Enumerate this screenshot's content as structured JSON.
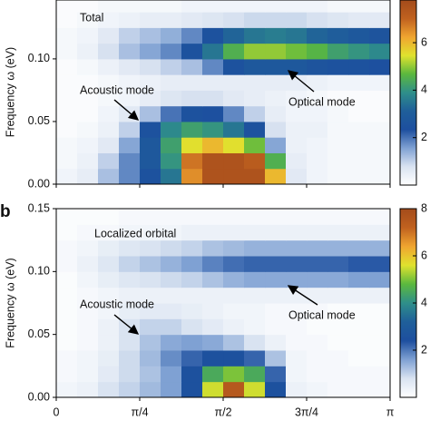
{
  "chart_data": [
    {
      "type": "heatmap",
      "ylabel": "Frequency ω (eV)",
      "annotations": [
        "Total",
        "Acoustic mode",
        "Optical mode"
      ],
      "x": [
        0.0982,
        0.2945,
        0.4909,
        0.6872,
        0.8836,
        1.0799,
        1.2763,
        1.4726,
        1.669,
        1.8653,
        2.0617,
        2.258,
        2.4544,
        2.6507,
        2.8471,
        3.0434
      ],
      "y": [
        0.00625,
        0.01875,
        0.03125,
        0.04375,
        0.05625,
        0.06875,
        0.08125,
        0.09375,
        0.10625,
        0.11875,
        0.13125,
        0.14375
      ],
      "z": [
        [
          0.3,
          0.5,
          1.2,
          1.8,
          2.5,
          3.5,
          6.5,
          7.5,
          7.5,
          7.5,
          6.0,
          0.6,
          0.3,
          0.2,
          0.2,
          0.2
        ],
        [
          0.2,
          0.4,
          1.0,
          1.8,
          2.8,
          4.0,
          6.8,
          7.5,
          7.5,
          7.2,
          4.5,
          0.5,
          0.3,
          0.2,
          0.2,
          0.2
        ],
        [
          0.2,
          0.3,
          0.6,
          1.5,
          2.8,
          4.2,
          5.5,
          6.0,
          5.5,
          4.8,
          1.5,
          0.4,
          0.3,
          0.2,
          0.2,
          0.2
        ],
        [
          0.1,
          0.2,
          0.4,
          1.0,
          2.5,
          3.8,
          4.2,
          4.0,
          3.5,
          2.5,
          0.8,
          0.4,
          0.4,
          0.2,
          0.2,
          0.2
        ],
        [
          0.1,
          0.1,
          0.3,
          0.6,
          1.2,
          2.0,
          2.5,
          2.4,
          1.8,
          1.0,
          0.5,
          0.3,
          0.3,
          0.2,
          0.1,
          0.1
        ],
        [
          0.1,
          0.1,
          0.2,
          0.3,
          0.5,
          0.7,
          0.8,
          0.8,
          0.6,
          0.5,
          0.4,
          0.3,
          0.2,
          0.1,
          0.1,
          0.1
        ],
        [
          0.1,
          0.1,
          0.2,
          0.3,
          0.4,
          0.5,
          0.5,
          0.5,
          0.5,
          0.5,
          0.5,
          0.5,
          0.4,
          0.3,
          0.3,
          0.3
        ],
        [
          0.1,
          0.2,
          0.4,
          0.6,
          0.8,
          1.0,
          1.2,
          1.8,
          2.5,
          2.8,
          2.8,
          2.8,
          2.6,
          2.5,
          2.5,
          2.4
        ],
        [
          0.2,
          0.4,
          0.8,
          1.2,
          1.5,
          1.8,
          2.5,
          3.5,
          4.5,
          5.0,
          5.0,
          4.8,
          4.6,
          4.2,
          4.0,
          3.8
        ],
        [
          0.2,
          0.3,
          0.6,
          1.0,
          1.2,
          1.4,
          1.8,
          2.5,
          3.2,
          3.5,
          3.6,
          3.5,
          3.2,
          3.0,
          2.8,
          2.6
        ],
        [
          0.1,
          0.2,
          0.3,
          0.4,
          0.5,
          0.5,
          0.6,
          0.7,
          0.8,
          0.9,
          0.9,
          0.9,
          0.8,
          0.7,
          0.6,
          0.6
        ],
        [
          0.1,
          0.1,
          0.2,
          0.2,
          0.2,
          0.2,
          0.3,
          0.3,
          0.3,
          0.3,
          0.3,
          0.3,
          0.3,
          0.2,
          0.2,
          0.2
        ]
      ],
      "xlim": [
        0,
        3.14159
      ],
      "ylim": [
        0,
        0.147
      ],
      "xticks": [
        0,
        0.7854,
        1.5708,
        2.3562,
        3.14159
      ],
      "yticks": [
        {
          "value": 0,
          "label": "0.00"
        },
        {
          "value": 0.05,
          "label": "0.05"
        },
        {
          "value": 0.1,
          "label": "0.10"
        }
      ],
      "zlim": [
        0,
        7.8
      ],
      "zticks": [
        2,
        4,
        6
      ],
      "colormap": [
        "#ffffff",
        "#d9e3f1",
        "#7fa1d3",
        "#1d4f9f",
        "#1f5f9a",
        "#2f8f8a",
        "#5bb83e",
        "#e0e22e",
        "#f0a530",
        "#c0611f",
        "#a34b1b"
      ]
    },
    {
      "type": "heatmap",
      "panel_label": "b",
      "ylabel": "Frequency ω (eV)",
      "annotations": [
        "Localized orbital",
        "Acoustic mode",
        "Optical mode"
      ],
      "x": [
        0.0982,
        0.2945,
        0.4909,
        0.6872,
        0.8836,
        1.0799,
        1.2763,
        1.4726,
        1.669,
        1.8653,
        2.0617,
        2.258,
        2.4544,
        2.6507,
        2.8471,
        3.0434
      ],
      "y": [
        0.00625,
        0.01875,
        0.03125,
        0.04375,
        0.05625,
        0.06875,
        0.08125,
        0.09375,
        0.10625,
        0.11875,
        0.13125,
        0.14375
      ],
      "z": [
        [
          0.3,
          0.4,
          0.8,
          1.0,
          1.3,
          1.6,
          2.5,
          5.5,
          7.5,
          5.5,
          2.5,
          0.4,
          0.3,
          0.2,
          0.2,
          0.2
        ],
        [
          0.2,
          0.3,
          0.6,
          0.9,
          1.2,
          1.6,
          2.5,
          4.5,
          5.0,
          4.5,
          2.2,
          0.3,
          0.2,
          0.2,
          0.2,
          0.2
        ],
        [
          0.2,
          0.3,
          0.5,
          0.9,
          1.3,
          1.8,
          2.2,
          2.5,
          2.5,
          2.2,
          1.2,
          0.3,
          0.2,
          0.2,
          0.1,
          0.1
        ],
        [
          0.1,
          0.2,
          0.4,
          0.8,
          1.2,
          1.5,
          1.6,
          1.5,
          1.2,
          0.8,
          0.4,
          0.2,
          0.2,
          0.1,
          0.1,
          0.1
        ],
        [
          0.1,
          0.2,
          0.4,
          0.8,
          1.0,
          1.0,
          0.8,
          0.6,
          0.4,
          0.3,
          0.2,
          0.2,
          0.1,
          0.1,
          0.1,
          0.1
        ],
        [
          0.1,
          0.2,
          0.3,
          0.5,
          0.6,
          0.6,
          0.5,
          0.4,
          0.3,
          0.3,
          0.2,
          0.2,
          0.2,
          0.1,
          0.1,
          0.1
        ],
        [
          0.1,
          0.2,
          0.3,
          0.4,
          0.4,
          0.4,
          0.4,
          0.4,
          0.4,
          0.4,
          0.4,
          0.4,
          0.4,
          0.4,
          0.4,
          0.4
        ],
        [
          0.1,
          0.3,
          0.5,
          0.7,
          0.8,
          0.9,
          1.0,
          1.2,
          1.4,
          1.5,
          1.5,
          1.5,
          1.5,
          1.5,
          1.6,
          1.6
        ],
        [
          0.2,
          0.4,
          0.7,
          1.0,
          1.2,
          1.4,
          1.6,
          1.9,
          2.1,
          2.2,
          2.2,
          2.2,
          2.2,
          2.2,
          2.3,
          2.3
        ],
        [
          0.2,
          0.3,
          0.5,
          0.7,
          0.8,
          0.9,
          1.0,
          1.2,
          1.3,
          1.4,
          1.4,
          1.4,
          1.4,
          1.4,
          1.4,
          1.4
        ],
        [
          0.1,
          0.2,
          0.2,
          0.3,
          0.3,
          0.3,
          0.4,
          0.4,
          0.4,
          0.4,
          0.4,
          0.4,
          0.4,
          0.4,
          0.4,
          0.4
        ],
        [
          0.1,
          0.1,
          0.1,
          0.2,
          0.2,
          0.2,
          0.2,
          0.2,
          0.2,
          0.2,
          0.2,
          0.2,
          0.2,
          0.2,
          0.2,
          0.2
        ]
      ],
      "xlim": [
        0,
        3.14159
      ],
      "ylim": [
        0,
        0.15
      ],
      "xticks": [
        0,
        {
          "value": 0.7854,
          "label": "π/4"
        },
        {
          "value": 1.5708,
          "label": "π/2"
        },
        {
          "value": 2.3562,
          "label": "3π/4"
        },
        {
          "value": 3.14159,
          "label": "π"
        }
      ],
      "yticks": [
        {
          "value": 0,
          "label": "0.00"
        },
        {
          "value": 0.05,
          "label": "0.05"
        },
        {
          "value": 0.1,
          "label": "0.10"
        },
        {
          "value": 0.15,
          "label": "0.15"
        }
      ],
      "zlim": [
        0,
        8
      ],
      "zticks": [
        2,
        4,
        6,
        8
      ],
      "colormap": [
        "#ffffff",
        "#d9e3f1",
        "#7fa1d3",
        "#1d4f9f",
        "#1f5f9a",
        "#2f8f8a",
        "#5bb83e",
        "#e0e22e",
        "#f0a530",
        "#c0611f",
        "#a34b1b"
      ]
    }
  ]
}
